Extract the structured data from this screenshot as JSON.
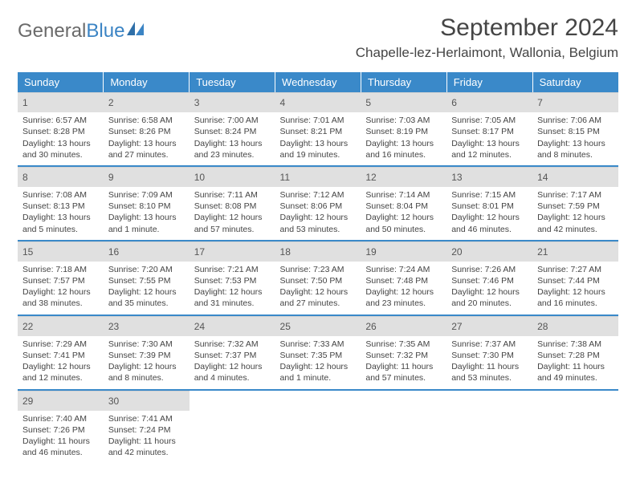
{
  "logo": {
    "text1": "General",
    "text2": "Blue"
  },
  "title": "September 2024",
  "location": "Chapelle-lez-Herlaimont, Wallonia, Belgium",
  "colors": {
    "header_bg": "#3a89c9",
    "header_text": "#ffffff",
    "daynum_bg": "#e0e0e0",
    "border": "#3a89c9",
    "body_text": "#444444",
    "logo_gray": "#6a6a6a",
    "logo_blue": "#3b84c4"
  },
  "weekdays": [
    "Sunday",
    "Monday",
    "Tuesday",
    "Wednesday",
    "Thursday",
    "Friday",
    "Saturday"
  ],
  "days": [
    {
      "n": "1",
      "sunrise": "6:57 AM",
      "sunset": "8:28 PM",
      "daylight": "13 hours and 30 minutes."
    },
    {
      "n": "2",
      "sunrise": "6:58 AM",
      "sunset": "8:26 PM",
      "daylight": "13 hours and 27 minutes."
    },
    {
      "n": "3",
      "sunrise": "7:00 AM",
      "sunset": "8:24 PM",
      "daylight": "13 hours and 23 minutes."
    },
    {
      "n": "4",
      "sunrise": "7:01 AM",
      "sunset": "8:21 PM",
      "daylight": "13 hours and 19 minutes."
    },
    {
      "n": "5",
      "sunrise": "7:03 AM",
      "sunset": "8:19 PM",
      "daylight": "13 hours and 16 minutes."
    },
    {
      "n": "6",
      "sunrise": "7:05 AM",
      "sunset": "8:17 PM",
      "daylight": "13 hours and 12 minutes."
    },
    {
      "n": "7",
      "sunrise": "7:06 AM",
      "sunset": "8:15 PM",
      "daylight": "13 hours and 8 minutes."
    },
    {
      "n": "8",
      "sunrise": "7:08 AM",
      "sunset": "8:13 PM",
      "daylight": "13 hours and 5 minutes."
    },
    {
      "n": "9",
      "sunrise": "7:09 AM",
      "sunset": "8:10 PM",
      "daylight": "13 hours and 1 minute."
    },
    {
      "n": "10",
      "sunrise": "7:11 AM",
      "sunset": "8:08 PM",
      "daylight": "12 hours and 57 minutes."
    },
    {
      "n": "11",
      "sunrise": "7:12 AM",
      "sunset": "8:06 PM",
      "daylight": "12 hours and 53 minutes."
    },
    {
      "n": "12",
      "sunrise": "7:14 AM",
      "sunset": "8:04 PM",
      "daylight": "12 hours and 50 minutes."
    },
    {
      "n": "13",
      "sunrise": "7:15 AM",
      "sunset": "8:01 PM",
      "daylight": "12 hours and 46 minutes."
    },
    {
      "n": "14",
      "sunrise": "7:17 AM",
      "sunset": "7:59 PM",
      "daylight": "12 hours and 42 minutes."
    },
    {
      "n": "15",
      "sunrise": "7:18 AM",
      "sunset": "7:57 PM",
      "daylight": "12 hours and 38 minutes."
    },
    {
      "n": "16",
      "sunrise": "7:20 AM",
      "sunset": "7:55 PM",
      "daylight": "12 hours and 35 minutes."
    },
    {
      "n": "17",
      "sunrise": "7:21 AM",
      "sunset": "7:53 PM",
      "daylight": "12 hours and 31 minutes."
    },
    {
      "n": "18",
      "sunrise": "7:23 AM",
      "sunset": "7:50 PM",
      "daylight": "12 hours and 27 minutes."
    },
    {
      "n": "19",
      "sunrise": "7:24 AM",
      "sunset": "7:48 PM",
      "daylight": "12 hours and 23 minutes."
    },
    {
      "n": "20",
      "sunrise": "7:26 AM",
      "sunset": "7:46 PM",
      "daylight": "12 hours and 20 minutes."
    },
    {
      "n": "21",
      "sunrise": "7:27 AM",
      "sunset": "7:44 PM",
      "daylight": "12 hours and 16 minutes."
    },
    {
      "n": "22",
      "sunrise": "7:29 AM",
      "sunset": "7:41 PM",
      "daylight": "12 hours and 12 minutes."
    },
    {
      "n": "23",
      "sunrise": "7:30 AM",
      "sunset": "7:39 PM",
      "daylight": "12 hours and 8 minutes."
    },
    {
      "n": "24",
      "sunrise": "7:32 AM",
      "sunset": "7:37 PM",
      "daylight": "12 hours and 4 minutes."
    },
    {
      "n": "25",
      "sunrise": "7:33 AM",
      "sunset": "7:35 PM",
      "daylight": "12 hours and 1 minute."
    },
    {
      "n": "26",
      "sunrise": "7:35 AM",
      "sunset": "7:32 PM",
      "daylight": "11 hours and 57 minutes."
    },
    {
      "n": "27",
      "sunrise": "7:37 AM",
      "sunset": "7:30 PM",
      "daylight": "11 hours and 53 minutes."
    },
    {
      "n": "28",
      "sunrise": "7:38 AM",
      "sunset": "7:28 PM",
      "daylight": "11 hours and 49 minutes."
    },
    {
      "n": "29",
      "sunrise": "7:40 AM",
      "sunset": "7:26 PM",
      "daylight": "11 hours and 46 minutes."
    },
    {
      "n": "30",
      "sunrise": "7:41 AM",
      "sunset": "7:24 PM",
      "daylight": "11 hours and 42 minutes."
    }
  ],
  "labels": {
    "sunrise": "Sunrise:",
    "sunset": "Sunset:",
    "daylight": "Daylight:"
  },
  "layout": {
    "cols": 7,
    "first_day_offset": 0,
    "total_cells": 35
  }
}
